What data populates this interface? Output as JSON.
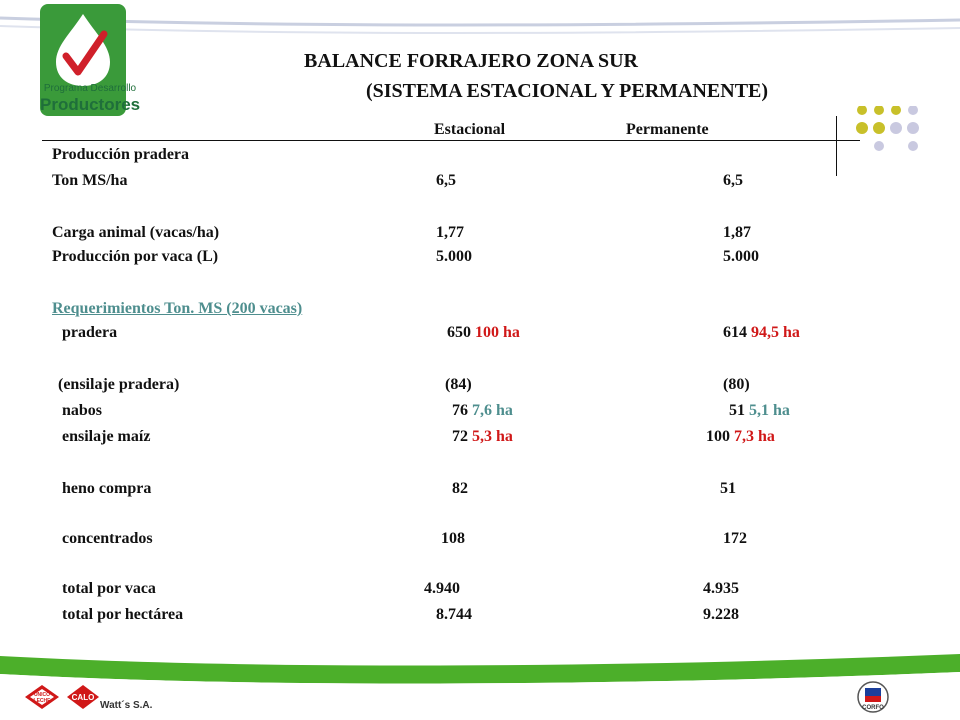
{
  "logo": {
    "line1": "Programa Desarrollo",
    "line2": "Productores"
  },
  "title": {
    "line1": "BALANCE FORRAJERO ZONA SUR",
    "line2": "(SISTEMA ESTACIONAL Y PERMANENTE)"
  },
  "columns": {
    "col1": "Estacional",
    "col2": "Permanente"
  },
  "rows": [
    {
      "label": "Producción pradera"
    },
    {
      "label": "Ton MS/ha",
      "v1": "6,5",
      "v2": "6,5"
    },
    {
      "label": "Carga animal  (vacas/ha)",
      "v1": "1,77",
      "v2": "1,87"
    },
    {
      "label": "Producción por vaca  (L)",
      "v1": "5.000",
      "v2": "5.000"
    },
    {
      "label": "Requerimientos  Ton. MS (200 vacas)"
    },
    {
      "label": "pradera",
      "v1": "650",
      "v1_area": "100 ha",
      "v2": "614",
      "v2_area": "94,5 ha"
    },
    {
      "label": "(ensilaje pradera)",
      "v1": "(84)",
      "v2": "(80)"
    },
    {
      "label": "nabos",
      "v1": "76",
      "v1_area": "7,6 ha",
      "v2": "51",
      "v2_area": "5,1 ha"
    },
    {
      "label": "ensilaje maíz",
      "v1": "72",
      "v1_area": "5,3 ha",
      "v2": "100",
      "v2_area": "7,3 ha"
    },
    {
      "label": "heno compra",
      "v1": "82",
      "v2": "51"
    },
    {
      "label": "concentrados",
      "v1": "108",
      "v2": "172"
    },
    {
      "label": "total por vaca",
      "v1": "4.940",
      "v2": "4.935"
    },
    {
      "label": "total por hectárea",
      "v1": "8.744",
      "v2": "9.228"
    }
  ],
  "footer": {
    "brand1": "UNICO LECHE",
    "brand2": "CALO",
    "brand3": "Watt´s S.A.",
    "brand4": "CORFO"
  },
  "colors": {
    "green": "#4caf2a",
    "red": "#d01818",
    "teal": "#4e8e8e",
    "dot_olive": "#c8c02a",
    "dot_lavender": "#c9c9e0"
  }
}
